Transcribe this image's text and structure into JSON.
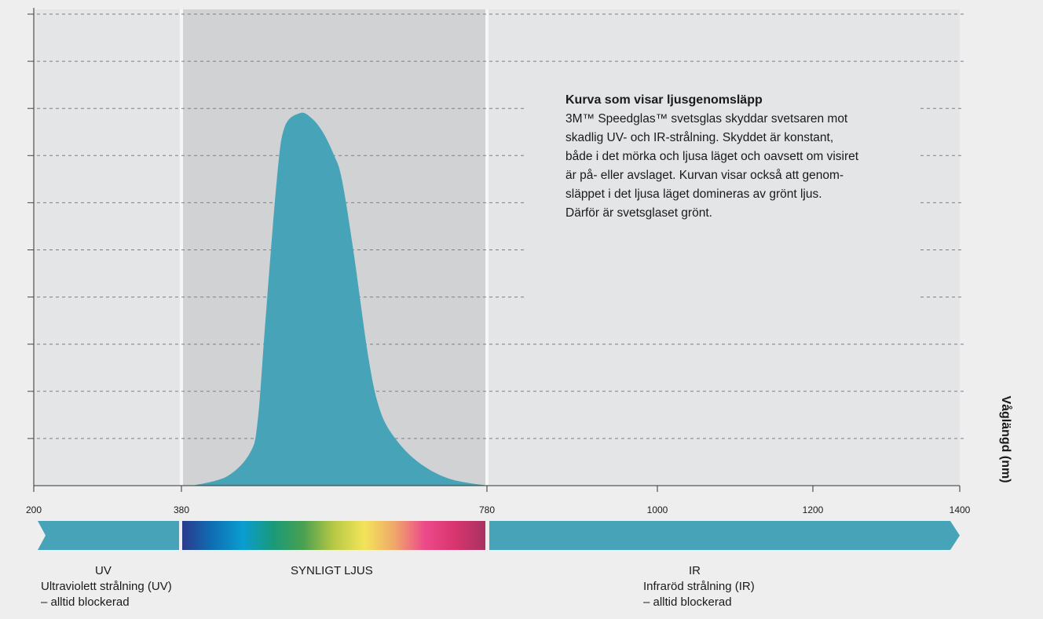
{
  "chart_data": {
    "type": "area",
    "title": "",
    "xlabel": "",
    "ylabel": "Våglängd (nm)",
    "xlim": [
      200,
      1400
    ],
    "ylim": [
      0,
      10
    ],
    "grid": true,
    "x_ticks": [
      {
        "value": 200,
        "label": "200"
      },
      {
        "value": 380,
        "label": "380"
      },
      {
        "value": 780,
        "label": "780"
      },
      {
        "value": 1000,
        "label": "1000"
      },
      {
        "value": 1200,
        "label": "1200"
      },
      {
        "value": 1400,
        "label": "1400"
      }
    ],
    "y_ticks": [
      1,
      2,
      3,
      4,
      5,
      6,
      7,
      8,
      9,
      10
    ],
    "regions": [
      {
        "from": 200,
        "to": 380,
        "color": "#e4e5e6"
      },
      {
        "from": 380,
        "to": 780,
        "color": "#d1d2d4"
      },
      {
        "from": 780,
        "to": 1400,
        "color": "#e4e5e6"
      }
    ],
    "series": [
      {
        "color": "#47a4b8",
        "points": [
          [
            395,
            0.0
          ],
          [
            440,
            0.2
          ],
          [
            470,
            0.7
          ],
          [
            480,
            1.4
          ],
          [
            490,
            3.5
          ],
          [
            505,
            6.5
          ],
          [
            515,
            7.6
          ],
          [
            535,
            7.9
          ],
          [
            550,
            7.8
          ],
          [
            565,
            7.5
          ],
          [
            580,
            7.0
          ],
          [
            590,
            6.5
          ],
          [
            605,
            5.0
          ],
          [
            625,
            2.7
          ],
          [
            640,
            1.6
          ],
          [
            660,
            1.0
          ],
          [
            690,
            0.5
          ],
          [
            730,
            0.15
          ],
          [
            780,
            0.0
          ]
        ]
      }
    ],
    "spectrum_bands": [
      {
        "from": 200,
        "to": 380,
        "color": "#47a4b8"
      },
      {
        "from": 380,
        "to": 780,
        "colors": [
          "#2a3a8c",
          "#0f6fb4",
          "#0a9dd0",
          "#1a9a7a",
          "#4aa050",
          "#b8c844",
          "#f2e45a",
          "#f0a86a",
          "#ec4a8a",
          "#d8356e",
          "#a83262"
        ]
      },
      {
        "from": 780,
        "to": 1400,
        "color": "#47a4b8"
      }
    ],
    "annotation": {
      "title": "Kurva som visar ljusgenomsläpp",
      "lines": [
        "3M™ Speedglas™ svetsglas skyddar svetsaren mot",
        "skadlig UV- och IR-strålning. Skyddet är konstant,",
        "både i det mörka och ljusa läget och oavsett om visiret",
        "är på- eller avslaget. Kurvan visar också att genom-",
        "släppet i det ljusa läget domineras av grönt ljus.",
        "Därför är svetsglaset grönt."
      ]
    }
  },
  "labels": {
    "uv_title": "UV",
    "uv_line1": "Ultraviolett strålning (UV)",
    "uv_line2": "– alltid blockerad",
    "visible_title": "SYNLIGT LJUS",
    "ir_title": "IR",
    "ir_line1": "Infraröd strålning (IR)",
    "ir_line2": "– alltid blockerad"
  }
}
